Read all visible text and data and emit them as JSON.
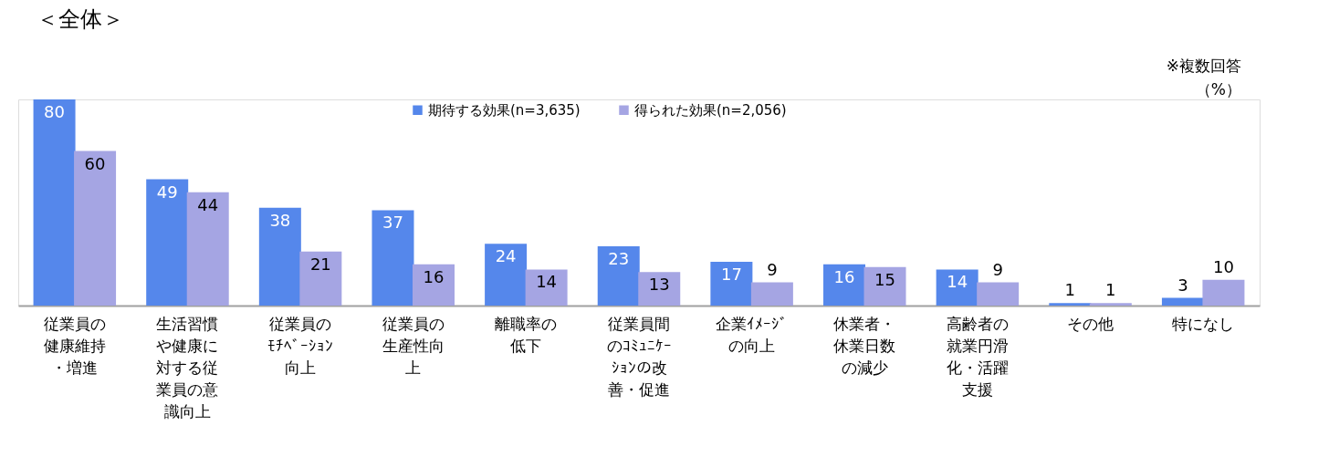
{
  "chart_data": {
    "type": "bar",
    "title": "＜全体＞",
    "categories": [
      "従業員の健康維持・増進",
      "生活習慣や健康に対する従業員の意識向上",
      "従業員のﾓﾁﾍﾞｰｼｮﾝ向上",
      "従業員の生産性向上",
      "離職率の低下",
      "従業員間のｺﾐｭﾆｹｰｼｮﾝの改善・促進",
      "企業ｲﾒｰｼﾞの向上",
      "休業者・休業日数の減少",
      "高齢者の就業円滑化・活躍支援",
      "その他",
      "特になし"
    ],
    "series": [
      {
        "name": "期待する効果(n=3,635)",
        "color": "#5587eb",
        "values": [
          80,
          49,
          38,
          37,
          24,
          23,
          17,
          16,
          14,
          1,
          3
        ]
      },
      {
        "name": "得られた効果(n=2,056)",
        "color": "#a5a5e3",
        "values": [
          60,
          44,
          21,
          16,
          14,
          13,
          9,
          15,
          9,
          1,
          10
        ]
      }
    ],
    "data_labels": true,
    "legend": "top",
    "grid": false,
    "annotations": [
      "※複数回答",
      "（%）"
    ]
  }
}
